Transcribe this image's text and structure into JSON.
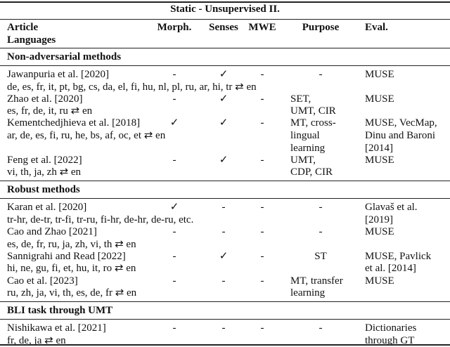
{
  "title": "Static - Unsupervised II.",
  "headers": {
    "article": "Article",
    "languages": "Languages",
    "morph": "Morph.",
    "senses": "Senses",
    "mwe": "MWE",
    "purpose": "Purpose",
    "eval": "Eval."
  },
  "sections": [
    {
      "name": "Non-adversarial methods",
      "entries": [
        {
          "article": "Jawanpuria et al. [2020]",
          "languages": "de, es, fr, it, pt, bg, cs, da, el, fi, hu, nl, pl, ru, ar, hi, tr ⇄ en",
          "morph": "-",
          "senses": "✓",
          "mwe": "-",
          "purpose": [
            "-"
          ],
          "purpose_center": true,
          "eval": [
            "MUSE"
          ]
        },
        {
          "article": "Zhao et al. [2020]",
          "languages": "es, fr, de, it, ru ⇄ en",
          "morph": "-",
          "senses": "✓",
          "mwe": "-",
          "purpose": [
            "SET,",
            "UMT, CIR"
          ],
          "eval": [
            "MUSE"
          ]
        },
        {
          "article": "Kementchedjhieva et al. [2018]",
          "languages": "ar, de, es, fi, ru, he, bs, af, oc, et ⇄ en",
          "morph": "✓",
          "senses": "✓",
          "mwe": "-",
          "purpose": [
            "MT, cross-",
            "lingual",
            "learning"
          ],
          "eval": [
            "MUSE, VecMap,",
            "Dinu and Baroni",
            "[2014]"
          ]
        },
        {
          "article": "Feng et al. [2022]",
          "languages": "vi, th, ja, zh ⇄ en",
          "morph": "-",
          "senses": "✓",
          "mwe": "-",
          "purpose": [
            "UMT,",
            "CDP, CIR"
          ],
          "eval": [
            "MUSE"
          ]
        }
      ]
    },
    {
      "name": "Robust methods",
      "entries": [
        {
          "article": "Karan et al. [2020]",
          "languages": "tr-hr, de-tr, tr-fi, tr-ru, fi-hr, de-hr, de-ru, etc.",
          "morph": "✓",
          "senses": "-",
          "mwe": "-",
          "purpose": [
            "-"
          ],
          "purpose_center": true,
          "eval": [
            "Glavaš et al.",
            "[2019]"
          ]
        },
        {
          "article": "Cao and Zhao [2021]",
          "languages": "es, de, fr, ru, ja, zh, vi, th ⇄ en",
          "morph": "-",
          "senses": "-",
          "mwe": "-",
          "purpose": [
            "-"
          ],
          "purpose_center": true,
          "eval": [
            "MUSE"
          ]
        },
        {
          "article": "Sannigrahi and Read [2022]",
          "languages": "hi, ne, gu, fi, et, hu, it, ro ⇄ en",
          "morph": "-",
          "senses": "✓",
          "mwe": "-",
          "purpose": [
            "ST"
          ],
          "purpose_center": true,
          "eval": [
            "MUSE, Pavlick",
            "et al. [2014]"
          ]
        },
        {
          "article": "Cao et al. [2023]",
          "languages": "ru, zh, ja, vi, th, es, de, fr ⇄ en",
          "morph": "-",
          "senses": "-",
          "mwe": "-",
          "purpose": [
            "MT, transfer",
            "learning"
          ],
          "eval": [
            "MUSE"
          ]
        }
      ]
    },
    {
      "name": "BLI task through UMT",
      "entries": [
        {
          "article": "Nishikawa et al. [2021]",
          "languages": "fr, de, ja ⇄ en",
          "morph": "-",
          "senses": "-",
          "mwe": "-",
          "purpose": [
            "-"
          ],
          "purpose_center": true,
          "eval": [
            "Dictionaries",
            "through GT"
          ]
        }
      ]
    }
  ]
}
